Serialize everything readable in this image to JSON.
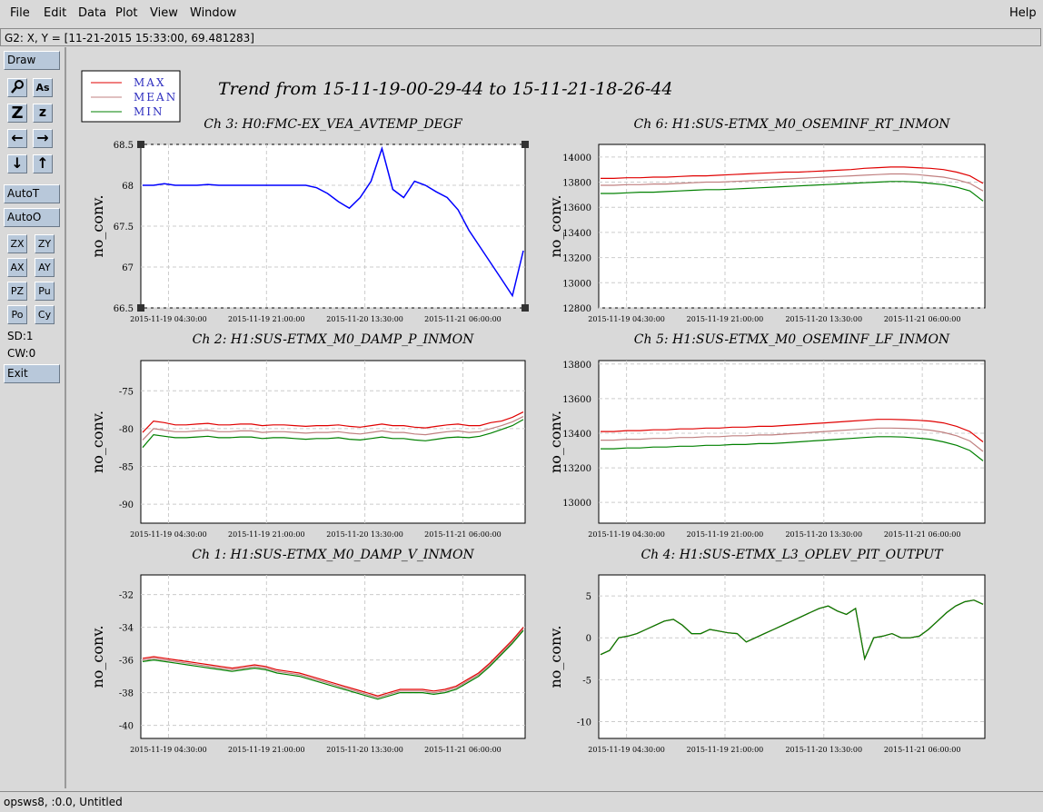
{
  "menubar": {
    "items": [
      "File",
      "Edit",
      "Data",
      "Plot",
      "View",
      "Window"
    ],
    "help": "Help"
  },
  "coord_readout": "G2: X, Y = [11-21-2015 15:33:00, 69.481283]",
  "toolbar": {
    "draw": "Draw",
    "icon_buttons": [
      {
        "icon": "magnify-icon",
        "label": ""
      },
      {
        "icon": "axis-scale-icon",
        "label": "As"
      },
      {
        "icon": "zoom-in-icon",
        "label": "Z"
      },
      {
        "icon": "zoom-out-icon",
        "label": "z"
      },
      {
        "icon": "arrow-left-icon",
        "label": "←"
      },
      {
        "icon": "arrow-right-icon",
        "label": "→"
      },
      {
        "icon": "arrow-down-icon",
        "label": "↓"
      },
      {
        "icon": "arrow-up-icon",
        "label": "↑"
      }
    ],
    "autot": "AutoT",
    "autoo": "AutoO",
    "small_buttons": [
      "ZX",
      "ZY",
      "AX",
      "AY",
      "PZ",
      "Pu",
      "Po",
      "Cy"
    ],
    "sd": "SD:1",
    "cw": "CW:0",
    "exit": "Exit"
  },
  "legend": [
    {
      "name": "MAX",
      "color": "#e00000"
    },
    {
      "name": "MEAN",
      "color": "#c08080"
    },
    {
      "name": "MIN",
      "color": "#008000"
    }
  ],
  "legend_text_color": "#3030c0",
  "main_title": "Trend from 15-11-19-00-29-44 to 15-11-21-18-26-44",
  "status": "opsws8, :0.0, Untitled",
  "x_tick_labels": [
    "2015-11-19 04:30:00",
    "2015-11-19 21:00:00",
    "2015-11-20 13:30:00",
    "2015-11-21 06:00:00"
  ],
  "chart_data": [
    {
      "type": "line",
      "title": "Ch 3: H0:FMC-EX_VEA_AVTEMP_DEGF",
      "ylabel": "no_conv.",
      "ylim": [
        66.5,
        68.5
      ],
      "yticks": [
        "66.5",
        "67",
        "67.5",
        "68",
        "68.5"
      ],
      "series": [
        {
          "color": "#0000ff",
          "values": [
            68.0,
            68.0,
            68.02,
            68.0,
            68.0,
            68.0,
            68.01,
            68.0,
            68.0,
            68.0,
            68.0,
            68.0,
            68.0,
            68.0,
            68.0,
            68.0,
            67.97,
            67.9,
            67.8,
            67.72,
            67.85,
            68.05,
            68.45,
            67.95,
            67.85,
            68.05,
            68.0,
            67.92,
            67.85,
            67.7,
            67.45,
            67.25,
            67.05,
            66.85,
            66.65,
            67.2
          ]
        }
      ],
      "hline_color": "#000000"
    },
    {
      "type": "line",
      "title": "Ch 6: H1:SUS-ETMX_M0_OSEMINF_RT_INMON",
      "ylabel": "no_conv.",
      "ylim": [
        12800,
        14100
      ],
      "yticks": [
        "12800",
        "13000",
        "13200",
        "13400",
        "13600",
        "13800",
        "14000"
      ],
      "series": [
        {
          "name": "MAX",
          "color": "#e00000",
          "values": [
            13830,
            13830,
            13835,
            13835,
            13840,
            13840,
            13845,
            13850,
            13850,
            13855,
            13860,
            13865,
            13870,
            13875,
            13880,
            13880,
            13885,
            13890,
            13895,
            13900,
            13910,
            13915,
            13920,
            13920,
            13915,
            13910,
            13900,
            13880,
            13850,
            13790
          ]
        },
        {
          "name": "MEAN",
          "color": "#c08080",
          "values": [
            13775,
            13775,
            13780,
            13780,
            13785,
            13785,
            13790,
            13795,
            13800,
            13800,
            13805,
            13810,
            13815,
            13820,
            13825,
            13830,
            13835,
            13840,
            13845,
            13850,
            13855,
            13860,
            13865,
            13865,
            13860,
            13850,
            13840,
            13820,
            13790,
            13730
          ]
        },
        {
          "name": "MIN",
          "color": "#008000",
          "values": [
            13710,
            13710,
            13715,
            13720,
            13720,
            13725,
            13730,
            13735,
            13740,
            13740,
            13745,
            13750,
            13755,
            13760,
            13765,
            13770,
            13775,
            13780,
            13785,
            13790,
            13795,
            13800,
            13805,
            13805,
            13800,
            13790,
            13780,
            13760,
            13730,
            13650
          ]
        }
      ]
    },
    {
      "type": "line",
      "title": "Ch 2: H1:SUS-ETMX_M0_DAMP_P_INMON",
      "ylabel": "no_conv.",
      "ylim": [
        -92.5,
        -71
      ],
      "yticks": [
        "-90",
        "-85",
        "-80",
        "-75"
      ],
      "series": [
        {
          "name": "MAX",
          "color": "#e00000",
          "values": [
            -80.5,
            -79,
            -79.2,
            -79.5,
            -79.5,
            -79.4,
            -79.3,
            -79.5,
            -79.5,
            -79.4,
            -79.4,
            -79.6,
            -79.5,
            -79.5,
            -79.6,
            -79.7,
            -79.6,
            -79.6,
            -79.5,
            -79.7,
            -79.8,
            -79.6,
            -79.4,
            -79.6,
            -79.6,
            -79.8,
            -79.9,
            -79.7,
            -79.5,
            -79.4,
            -79.6,
            -79.6,
            -79.2,
            -79.0,
            -78.5,
            -77.8
          ]
        },
        {
          "name": "MEAN",
          "color": "#c08080",
          "values": [
            -81.5,
            -80,
            -80.2,
            -80.4,
            -80.4,
            -80.3,
            -80.2,
            -80.4,
            -80.4,
            -80.3,
            -80.3,
            -80.5,
            -80.4,
            -80.4,
            -80.5,
            -80.6,
            -80.5,
            -80.5,
            -80.4,
            -80.6,
            -80.7,
            -80.5,
            -80.3,
            -80.5,
            -80.5,
            -80.7,
            -80.8,
            -80.6,
            -80.4,
            -80.3,
            -80.5,
            -80.4,
            -80.0,
            -79.6,
            -79.1,
            -78.4
          ]
        },
        {
          "name": "MIN",
          "color": "#008000",
          "values": [
            -82.5,
            -80.8,
            -81,
            -81.2,
            -81.2,
            -81.1,
            -81,
            -81.2,
            -81.2,
            -81.1,
            -81.1,
            -81.3,
            -81.2,
            -81.2,
            -81.3,
            -81.4,
            -81.3,
            -81.3,
            -81.2,
            -81.4,
            -81.5,
            -81.3,
            -81.1,
            -81.3,
            -81.3,
            -81.5,
            -81.6,
            -81.4,
            -81.2,
            -81.1,
            -81.2,
            -81.0,
            -80.6,
            -80.1,
            -79.6,
            -78.8
          ]
        }
      ]
    },
    {
      "type": "line",
      "title": "Ch 5: H1:SUS-ETMX_M0_OSEMINF_LF_INMON",
      "ylabel": "no_conv.",
      "ylim": [
        12880,
        13820
      ],
      "yticks": [
        "13000",
        "13200",
        "13400",
        "13600",
        "13800"
      ],
      "series": [
        {
          "name": "MAX",
          "color": "#e00000",
          "values": [
            13410,
            13410,
            13415,
            13415,
            13420,
            13420,
            13425,
            13425,
            13430,
            13430,
            13435,
            13435,
            13440,
            13440,
            13445,
            13450,
            13455,
            13460,
            13465,
            13470,
            13475,
            13480,
            13480,
            13478,
            13475,
            13470,
            13460,
            13440,
            13410,
            13350
          ]
        },
        {
          "name": "MEAN",
          "color": "#c08080",
          "values": [
            13360,
            13360,
            13365,
            13365,
            13370,
            13370,
            13375,
            13375,
            13380,
            13380,
            13385,
            13385,
            13390,
            13390,
            13395,
            13400,
            13405,
            13410,
            13415,
            13420,
            13425,
            13430,
            13430,
            13428,
            13425,
            13418,
            13405,
            13385,
            13355,
            13295
          ]
        },
        {
          "name": "MIN",
          "color": "#008000",
          "values": [
            13310,
            13310,
            13315,
            13315,
            13320,
            13320,
            13325,
            13325,
            13330,
            13330,
            13335,
            13335,
            13340,
            13340,
            13345,
            13350,
            13355,
            13360,
            13365,
            13370,
            13375,
            13380,
            13380,
            13378,
            13372,
            13365,
            13350,
            13330,
            13300,
            13240
          ]
        }
      ]
    },
    {
      "type": "line",
      "title": "Ch 1: H1:SUS-ETMX_M0_DAMP_V_INMON",
      "ylabel": "no_conv.",
      "ylim": [
        -40.8,
        -30.8
      ],
      "yticks": [
        "-40",
        "-38",
        "-36",
        "-34",
        "-32"
      ],
      "series": [
        {
          "name": "MAX",
          "color": "#e00000",
          "values": [
            -35.9,
            -35.8,
            -35.9,
            -36.0,
            -36.1,
            -36.2,
            -36.3,
            -36.4,
            -36.5,
            -36.4,
            -36.3,
            -36.4,
            -36.6,
            -36.7,
            -36.8,
            -37.0,
            -37.2,
            -37.4,
            -37.6,
            -37.8,
            -38.0,
            -38.2,
            -38.0,
            -37.8,
            -37.8,
            -37.8,
            -37.9,
            -37.8,
            -37.6,
            -37.2,
            -36.8,
            -36.2,
            -35.5,
            -34.8,
            -34.0
          ]
        },
        {
          "name": "MEAN",
          "color": "#c08080",
          "values": [
            -36.0,
            -35.9,
            -36.0,
            -36.1,
            -36.2,
            -36.3,
            -36.4,
            -36.5,
            -36.6,
            -36.5,
            -36.4,
            -36.5,
            -36.7,
            -36.8,
            -36.9,
            -37.1,
            -37.3,
            -37.5,
            -37.7,
            -37.9,
            -38.1,
            -38.3,
            -38.1,
            -37.9,
            -37.9,
            -37.9,
            -38.0,
            -37.9,
            -37.7,
            -37.3,
            -36.9,
            -36.3,
            -35.6,
            -34.9,
            -34.1
          ]
        },
        {
          "name": "MIN",
          "color": "#008000",
          "values": [
            -36.1,
            -36.0,
            -36.1,
            -36.2,
            -36.3,
            -36.4,
            -36.5,
            -36.6,
            -36.7,
            -36.6,
            -36.5,
            -36.6,
            -36.8,
            -36.9,
            -37.0,
            -37.2,
            -37.4,
            -37.6,
            -37.8,
            -38.0,
            -38.2,
            -38.4,
            -38.2,
            -38.0,
            -38.0,
            -38.0,
            -38.1,
            -38.0,
            -37.8,
            -37.4,
            -37.0,
            -36.4,
            -35.7,
            -35.0,
            -34.2
          ]
        }
      ]
    },
    {
      "type": "line",
      "title": "Ch 4: H1:SUS-ETMX_L3_OPLEV_PIT_OUTPUT",
      "ylabel": "no_conv.",
      "ylim": [
        -12,
        7.5
      ],
      "yticks": [
        "-10",
        "-5",
        "0",
        "5"
      ],
      "series": [
        {
          "name": "MAX",
          "color": "#e00000",
          "values": [
            -2,
            -1.5,
            0,
            0.2,
            0.5,
            1,
            1.5,
            2,
            2.2,
            1.5,
            0.5,
            0.5,
            1,
            0.8,
            0.6,
            0.5,
            -0.5,
            0,
            0.5,
            1,
            1.5,
            2,
            2.5,
            3,
            3.5,
            3.8,
            3.2,
            2.8,
            3.5,
            -2.5,
            0,
            0.2,
            0.5,
            0,
            0,
            0.2,
            1,
            2,
            3,
            3.8,
            4.3,
            4.5,
            4
          ]
        },
        {
          "name": "MEAN",
          "color": "#c08080",
          "values": [
            -2,
            -1.5,
            0,
            0.2,
            0.5,
            1,
            1.5,
            2,
            2.2,
            1.5,
            0.5,
            0.5,
            1,
            0.8,
            0.6,
            0.5,
            -0.5,
            0,
            0.5,
            1,
            1.5,
            2,
            2.5,
            3,
            3.5,
            3.8,
            3.2,
            2.8,
            3.5,
            -2.5,
            0,
            0.2,
            0.5,
            0,
            0,
            0.2,
            1,
            2,
            3,
            3.8,
            4.3,
            4.5,
            4
          ]
        },
        {
          "name": "MIN",
          "color": "#008000",
          "values": [
            -2,
            -1.5,
            0,
            0.2,
            0.5,
            1,
            1.5,
            2,
            2.2,
            1.5,
            0.5,
            0.5,
            1,
            0.8,
            0.6,
            0.5,
            -0.5,
            0,
            0.5,
            1,
            1.5,
            2,
            2.5,
            3,
            3.5,
            3.8,
            3.2,
            2.8,
            3.5,
            -2.5,
            0,
            0.2,
            0.5,
            0,
            0,
            0.2,
            1,
            2,
            3,
            3.8,
            4.3,
            4.5,
            4
          ]
        }
      ]
    }
  ]
}
